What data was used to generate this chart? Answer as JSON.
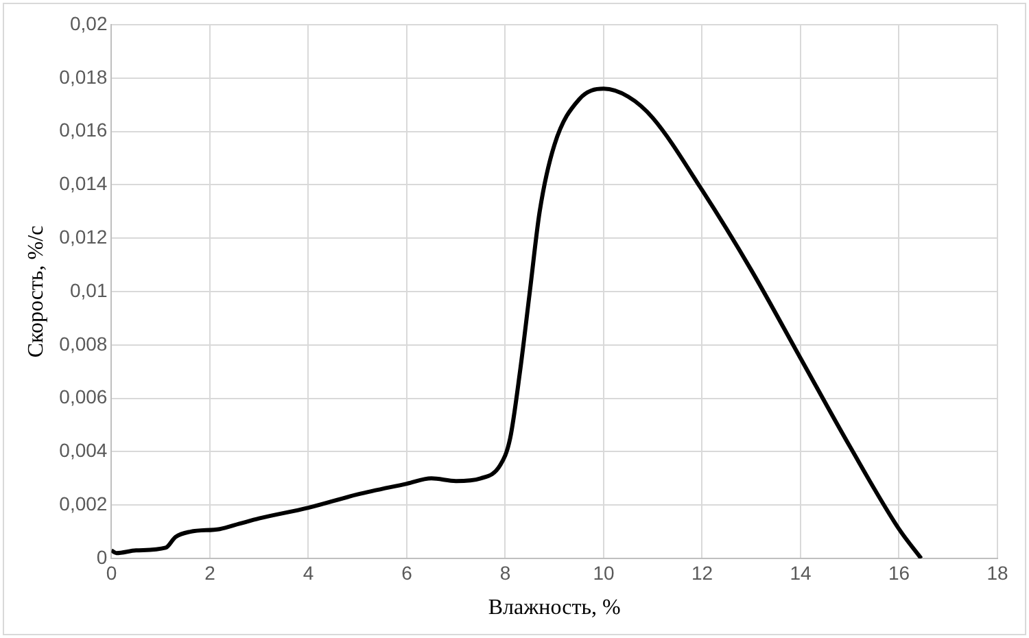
{
  "chart_data": {
    "type": "line",
    "xlabel": "Влажность, %",
    "ylabel": "Скорость, %/с",
    "x": [
      0,
      0.1,
      0.5,
      1.1,
      1.3,
      1.6,
      2.2,
      2.6,
      3,
      4,
      5,
      6,
      6.5,
      7,
      7.5,
      7.9,
      8.1,
      8.3,
      8.5,
      8.7,
      9,
      9.5,
      10,
      10.5,
      11,
      12,
      13,
      14,
      15,
      16,
      16.45
    ],
    "series": [
      {
        "color": "#000000",
        "values": [
          0.0003,
          0.0002,
          0.0003,
          0.0004,
          0.0008,
          0.001,
          0.0011,
          0.0013,
          0.0015,
          0.0019,
          0.0024,
          0.0028,
          0.003,
          0.0029,
          0.003,
          0.0035,
          0.0045,
          0.007,
          0.01,
          0.013,
          0.0155,
          0.0172,
          0.0176,
          0.0173,
          0.0165,
          0.0138,
          0.0108,
          0.0075,
          0.0042,
          0.0011,
          0
        ]
      }
    ],
    "xlim": [
      0,
      18
    ],
    "xticks": [
      0,
      2,
      4,
      6,
      8,
      10,
      12,
      14,
      16,
      18
    ],
    "ylim": [
      0,
      0.02
    ],
    "yticks": [
      0,
      {
        "value": 0.002,
        "label": "0,002"
      },
      {
        "value": 0.004,
        "label": "0,004"
      },
      {
        "value": 0.006,
        "label": "0,006"
      },
      {
        "value": 0.008,
        "label": "0,008"
      },
      {
        "value": 0.01,
        "label": "0,01"
      },
      {
        "value": 0.012,
        "label": "0,012"
      },
      {
        "value": 0.014,
        "label": "0,014"
      },
      {
        "value": 0.016,
        "label": "0,016"
      },
      {
        "value": 0.018,
        "label": "0,018"
      },
      {
        "value": 0.02,
        "label": "0,02"
      }
    ],
    "grid": true,
    "legend": false,
    "marker": "none",
    "line_style": "solid"
  }
}
